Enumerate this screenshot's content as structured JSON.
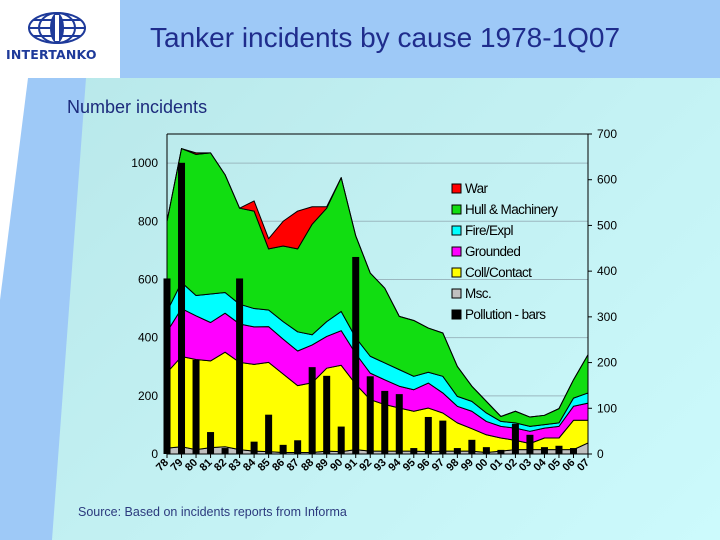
{
  "logo": {
    "text": "INTERTANKO"
  },
  "title": "Tanker incidents by cause 1978-1Q07",
  "subtitle": "Number incidents",
  "source": "Source: Based on incidents reports from Informa",
  "chart_data": {
    "type": "area",
    "stacked": true,
    "title": "Tanker incidents by cause 1978-1Q07",
    "ylabel": "Number incidents",
    "categories": [
      "78",
      "79",
      "80",
      "81",
      "82",
      "83",
      "84",
      "85",
      "86",
      "87",
      "88",
      "89",
      "90",
      "91",
      "92",
      "93",
      "94",
      "95",
      "96",
      "97",
      "98",
      "99",
      "00",
      "01",
      "02",
      "03",
      "04",
      "05",
      "06",
      "07"
    ],
    "y_left": {
      "range": [
        0,
        1100
      ],
      "ticks": [
        0,
        200,
        400,
        600,
        800,
        1000
      ]
    },
    "y_right": {
      "range": [
        0,
        700
      ],
      "ticks": [
        0,
        100,
        200,
        300,
        400,
        500,
        600,
        700
      ]
    },
    "grid": true,
    "legend_position": "upper-right inside",
    "series": [
      {
        "name": "Msc.",
        "type": "area",
        "axis": "left",
        "color": "#c0c0c0",
        "values": [
          20,
          25,
          15,
          22,
          25,
          15,
          10,
          8,
          5,
          5,
          5,
          10,
          8,
          15,
          10,
          10,
          10,
          10,
          8,
          10,
          10,
          10,
          5,
          10,
          15,
          15,
          15,
          15,
          15,
          38
        ]
      },
      {
        "name": "Coll/Contact",
        "type": "area",
        "axis": "left",
        "color": "#ffff00",
        "values": [
          260,
          310,
          310,
          298,
          325,
          300,
          298,
          307,
          270,
          230,
          240,
          285,
          297,
          225,
          177,
          160,
          148,
          137,
          150,
          131,
          97,
          77,
          61,
          45,
          32,
          21,
          40,
          40,
          101,
          78
        ]
      },
      {
        "name": "Grounded",
        "type": "area",
        "axis": "left",
        "color": "#ff00ff",
        "values": [
          140,
          165,
          150,
          132,
          134,
          132,
          129,
          123,
          120,
          119,
          130,
          109,
          119,
          105,
          91,
          85,
          75,
          74,
          86,
          69,
          57,
          60,
          46,
          40,
          42,
          42,
          34,
          40,
          48,
          59
        ]
      },
      {
        "name": "Fire/Expl",
        "type": "area",
        "axis": "left",
        "color": "#00ffff",
        "values": [
          70,
          90,
          70,
          98,
          71,
          68,
          63,
          57,
          60,
          66,
          35,
          51,
          66,
          55,
          58,
          58,
          57,
          46,
          37,
          57,
          34,
          34,
          29,
          17,
          18,
          17,
          12,
          12,
          28,
          35
        ]
      },
      {
        "name": "Hull & Machinery",
        "type": "area",
        "axis": "left",
        "color": "#11dd11",
        "values": [
          310,
          460,
          485,
          485,
          405,
          330,
          335,
          210,
          260,
          285,
          380,
          390,
          460,
          350,
          286,
          257,
          183,
          192,
          152,
          149,
          103,
          52,
          40,
          17,
          40,
          32,
          32,
          49,
          63,
          131
        ]
      },
      {
        "name": "War",
        "type": "area",
        "axis": "left",
        "color": "#ff0000",
        "values": [
          0,
          0,
          5,
          0,
          0,
          0,
          35,
          35,
          85,
          130,
          60,
          5,
          0,
          0,
          0,
          0,
          0,
          0,
          0,
          0,
          0,
          0,
          0,
          0,
          0,
          0,
          0,
          0,
          0,
          0
        ]
      },
      {
        "name": "Pollution - bars",
        "type": "bar",
        "axis": "right",
        "color": "#000000",
        "values": [
          384,
          637,
          206,
          48,
          13,
          384,
          27,
          86,
          20,
          30,
          190,
          171,
          60,
          431,
          170,
          138,
          131,
          13,
          81,
          73,
          13,
          31,
          15,
          9,
          66,
          42,
          15,
          18,
          13,
          0
        ]
      }
    ]
  }
}
